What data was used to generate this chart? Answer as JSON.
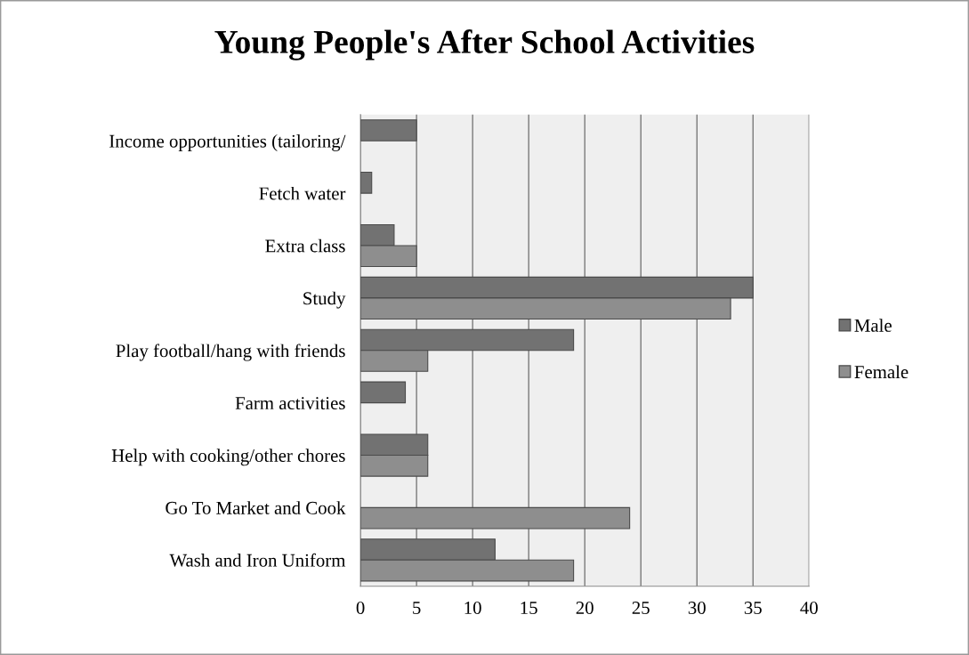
{
  "chart_data": {
    "type": "bar",
    "orientation": "horizontal",
    "title": "Young People's After School Activities",
    "categories": [
      "Income opportunities (tailoring/",
      "Fetch water",
      "Extra class",
      "Study",
      "Play football/hang with friends",
      "Farm activities",
      "Help with cooking/other chores",
      "Go To Market and Cook",
      "Wash and Iron Uniform"
    ],
    "series": [
      {
        "name": "Male",
        "color": "#727272",
        "values": [
          5,
          1,
          3,
          35,
          19,
          4,
          6,
          null,
          12
        ]
      },
      {
        "name": "Female",
        "color": "#8e8e8e",
        "values": [
          null,
          null,
          5,
          33,
          6,
          null,
          6,
          24,
          19
        ]
      }
    ],
    "xlim": [
      0,
      40
    ],
    "xticks": [
      0,
      5,
      10,
      15,
      20,
      25,
      30,
      35,
      40
    ],
    "grid": "x",
    "legend": "right"
  }
}
